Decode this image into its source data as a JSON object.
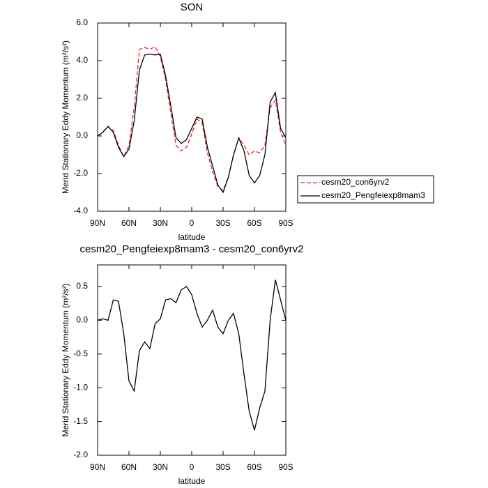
{
  "chart_data": [
    {
      "type": "line",
      "title": "SON",
      "xlabel": "latitude",
      "ylabel": "Merid Stationary Eddy Momentum (m²/s²)",
      "x": [
        90,
        85,
        80,
        75,
        70,
        65,
        60,
        55,
        50,
        45,
        40,
        35,
        30,
        25,
        20,
        15,
        10,
        5,
        0,
        -5,
        -10,
        -15,
        -20,
        -25,
        -30,
        -35,
        -40,
        -45,
        -50,
        -55,
        -60,
        -65,
        -70,
        -75,
        -80,
        -85,
        -90
      ],
      "series": [
        {
          "name": "cesm20_con6yrv2",
          "color": "#e8262a",
          "dash": true,
          "values": [
            0,
            0.2,
            0.5,
            0.3,
            -0.5,
            -1.1,
            -0.5,
            1.5,
            4.6,
            4.7,
            4.6,
            4.75,
            4.2,
            3.0,
            1.2,
            -0.5,
            -0.8,
            -0.6,
            0.1,
            0.9,
            0.7,
            -0.9,
            -1.9,
            -2.7,
            -2.9,
            -2.2,
            -1.0,
            -0.1,
            -0.5,
            -1.0,
            -0.8,
            -0.9,
            -0.5,
            1.5,
            1.9,
            0.2,
            -0.5
          ]
        },
        {
          "name": "cesm20_Pengfeiexp8mam3",
          "color": "#000000",
          "dash": false,
          "values": [
            0,
            0.2,
            0.5,
            0.2,
            -0.6,
            -1.1,
            -0.7,
            0.8,
            3.5,
            4.3,
            4.35,
            4.3,
            4.35,
            3.2,
            1.6,
            -0.1,
            -0.4,
            -0.2,
            0.4,
            1.0,
            0.9,
            -0.6,
            -1.6,
            -2.6,
            -3.0,
            -2.2,
            -1.0,
            -0.1,
            -0.8,
            -2.1,
            -2.5,
            -2.1,
            -1.0,
            1.8,
            2.3,
            0.4,
            -0.1
          ]
        }
      ],
      "xlim": [
        90,
        -90
      ],
      "xticks": [
        {
          "value": 90,
          "label": "90N"
        },
        {
          "value": 60,
          "label": "60N"
        },
        {
          "value": 30,
          "label": "30N"
        },
        0,
        {
          "value": -30,
          "label": "30S"
        },
        {
          "value": -60,
          "label": "60S"
        },
        {
          "value": -90,
          "label": "90S"
        }
      ],
      "ylim": [
        -4,
        6
      ],
      "yticks": [
        {
          "value": -4,
          "label": "-4.0"
        },
        {
          "value": -2,
          "label": "-2.0"
        },
        {
          "value": 0,
          "label": "0.0"
        },
        {
          "value": 2,
          "label": "2.0"
        },
        {
          "value": 4,
          "label": "4.0"
        },
        {
          "value": 6,
          "label": "6.0"
        }
      ],
      "legend": "right"
    },
    {
      "type": "line",
      "title": "cesm20_Pengfeiexp8mam3 - cesm20_con6yrv2",
      "xlabel": "latitude",
      "ylabel": "Merid Stationary Eddy Momentum (m²/s²)",
      "x": [
        90,
        85,
        80,
        75,
        70,
        65,
        60,
        55,
        50,
        45,
        40,
        35,
        30,
        25,
        20,
        15,
        10,
        5,
        0,
        -5,
        -10,
        -15,
        -20,
        -25,
        -30,
        -35,
        -40,
        -45,
        -50,
        -55,
        -60,
        -65,
        -70,
        -75,
        -80,
        -85,
        -90
      ],
      "series": [
        {
          "color": "#000000",
          "dash": false,
          "values": [
            0.0,
            0.02,
            0.0,
            0.3,
            0.28,
            -0.2,
            -0.9,
            -1.05,
            -0.45,
            -0.32,
            -0.42,
            -0.05,
            0.02,
            0.3,
            0.32,
            0.26,
            0.45,
            0.5,
            0.38,
            0.1,
            -0.1,
            0.0,
            0.15,
            -0.1,
            -0.2,
            0.0,
            0.1,
            -0.2,
            -0.8,
            -1.35,
            -1.63,
            -1.3,
            -1.05,
            0.0,
            0.6,
            0.3,
            0.0
          ]
        }
      ],
      "xlim": [
        90,
        -90
      ],
      "xticks": [
        {
          "value": 90,
          "label": "90N"
        },
        {
          "value": 60,
          "label": "60N"
        },
        {
          "value": 30,
          "label": "30N"
        },
        0,
        {
          "value": -30,
          "label": "30S"
        },
        {
          "value": -60,
          "label": "60S"
        },
        {
          "value": -90,
          "label": "90S"
        }
      ],
      "ylim": [
        -2,
        0.82
      ],
      "yticks": [
        {
          "value": -2,
          "label": "-2.0"
        },
        -1.5,
        {
          "value": -1,
          "label": "-1.0"
        },
        -0.5,
        {
          "value": 0,
          "label": "0.0"
        },
        0.5
      ]
    }
  ]
}
